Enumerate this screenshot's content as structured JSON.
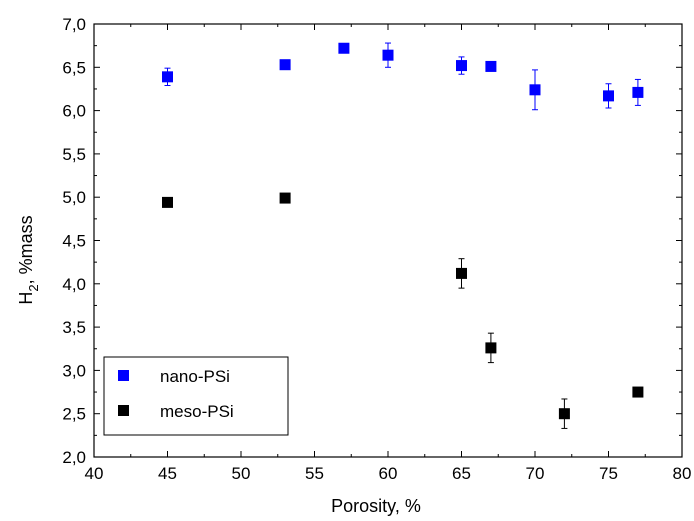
{
  "chart_data": {
    "type": "scatter",
    "xlabel": "Porosity, %",
    "ylabel_main": "H",
    "ylabel_sub": "2",
    "ylabel_rest": ", %mass",
    "xlim": [
      40,
      80
    ],
    "ylim": [
      2.0,
      7.0
    ],
    "xticks": [
      40,
      45,
      50,
      55,
      60,
      65,
      70,
      75,
      80
    ],
    "yticks": [
      2.0,
      2.5,
      3.0,
      3.5,
      4.0,
      4.5,
      5.0,
      5.5,
      6.0,
      6.5,
      7.0
    ],
    "ytick_labels": [
      "2,0",
      "2,5",
      "3,0",
      "3,5",
      "4,0",
      "4,5",
      "5,0",
      "5,5",
      "6,0",
      "6,5",
      "7,0"
    ],
    "grid": false,
    "legend_position": "bottom-left",
    "series": [
      {
        "name": "nano-PSi",
        "color": "#0000ff",
        "marker": "square",
        "points": [
          {
            "x": 45,
            "y": 6.39,
            "err": 0.1
          },
          {
            "x": 53,
            "y": 6.53,
            "err": 0
          },
          {
            "x": 57,
            "y": 6.72,
            "err": 0
          },
          {
            "x": 60,
            "y": 6.64,
            "err": 0.14
          },
          {
            "x": 65,
            "y": 6.52,
            "err": 0.1
          },
          {
            "x": 67,
            "y": 6.51,
            "err": 0
          },
          {
            "x": 70,
            "y": 6.24,
            "err": 0.23
          },
          {
            "x": 75,
            "y": 6.17,
            "err": 0.14
          },
          {
            "x": 77,
            "y": 6.21,
            "err": 0.15
          }
        ]
      },
      {
        "name": "meso-PSi",
        "color": "#000000",
        "marker": "square",
        "points": [
          {
            "x": 45,
            "y": 4.94,
            "err": 0
          },
          {
            "x": 53,
            "y": 4.99,
            "err": 0
          },
          {
            "x": 65,
            "y": 4.12,
            "err": 0.17
          },
          {
            "x": 67,
            "y": 3.26,
            "err": 0.17
          },
          {
            "x": 72,
            "y": 2.5,
            "err": 0.17
          },
          {
            "x": 77,
            "y": 2.75,
            "err": 0
          }
        ]
      }
    ]
  }
}
